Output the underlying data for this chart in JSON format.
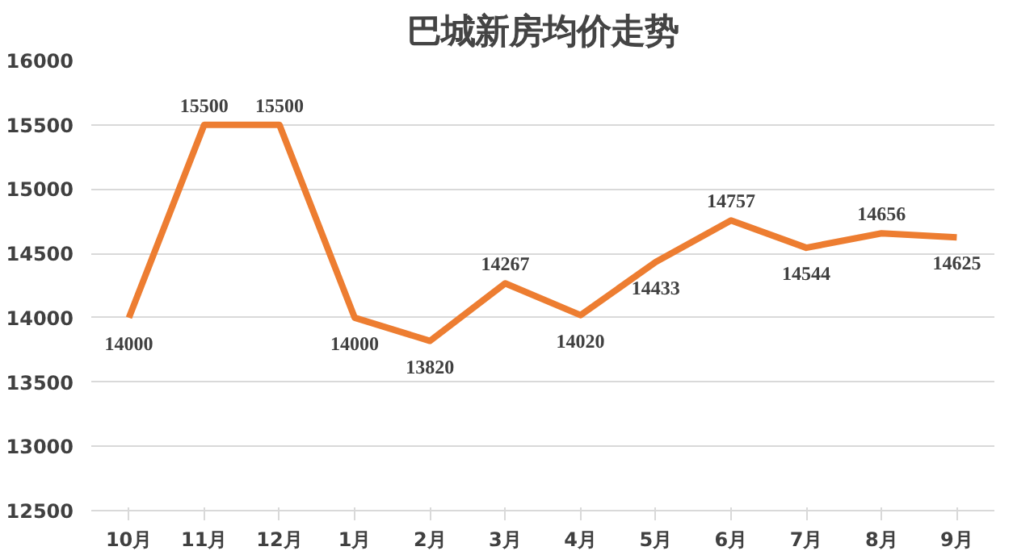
{
  "chart_data": {
    "type": "line",
    "title": "巴城新房均价走势",
    "categories": [
      "10月",
      "11月",
      "12月",
      "1月",
      "2月",
      "3月",
      "4月",
      "5月",
      "6月",
      "7月",
      "8月",
      "9月"
    ],
    "series": [
      {
        "color": "#ed7d31",
        "values": [
          14000,
          15500,
          15500,
          14000,
          13820,
          14267,
          14020,
          14433,
          14757,
          14544,
          14656,
          14625
        ]
      }
    ],
    "ylim": [
      12500,
      16000
    ],
    "yticks": [
      12500,
      13000,
      13500,
      14000,
      14500,
      15000,
      15500,
      16000
    ],
    "grid": "y",
    "data_labels": true,
    "marker": "none",
    "line_style": "solid"
  }
}
